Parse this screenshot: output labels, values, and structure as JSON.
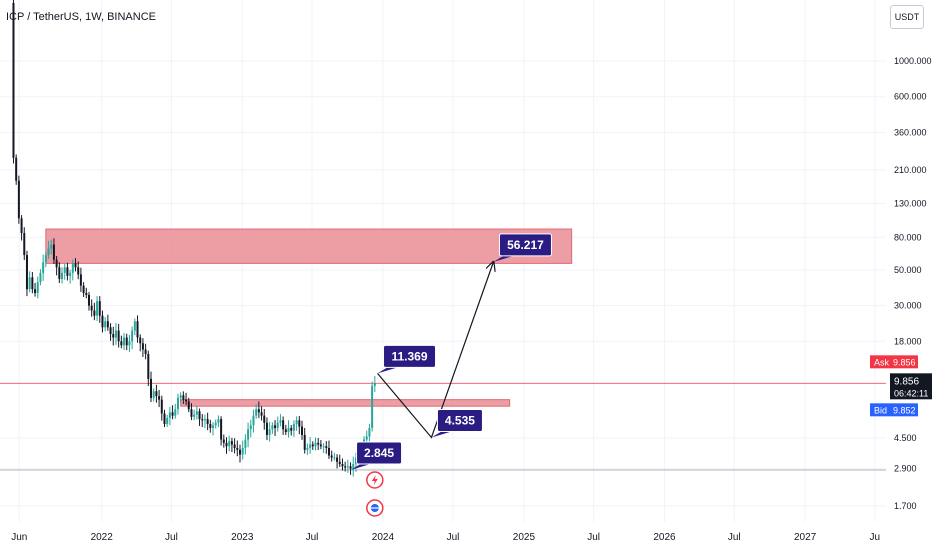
{
  "header": {
    "symbol_title": "ICP / TetherUS, 1W, BINANCE",
    "currency_button": "USDT"
  },
  "quote": {
    "ask_label": "Ask",
    "ask_value": "9.856",
    "last_value": "9.856",
    "countdown": "06:42:11",
    "bid_label": "Bid",
    "bid_value": "9.852"
  },
  "colors": {
    "up": "#26a69a",
    "down": "#131722",
    "zone_fill": "#e8868e",
    "zone_border": "#e06a74",
    "ask": "#f23645",
    "bid": "#2962ff",
    "last_price_bg": "#131722",
    "label_bg": "#2a1c83",
    "arrow": "#131722"
  },
  "chart_data": {
    "type": "candlestick",
    "title": "ICP / TetherUS, 1W, BINANCE",
    "y_scale": "log",
    "ylim": [
      1.35,
      2400
    ],
    "y_ticks": [
      {
        "v": 1000,
        "label": "1000.000"
      },
      {
        "v": 600,
        "label": "600.000"
      },
      {
        "v": 360,
        "label": "360.000"
      },
      {
        "v": 210,
        "label": "210.000"
      },
      {
        "v": 130,
        "label": "130.000"
      },
      {
        "v": 80,
        "label": "80.000"
      },
      {
        "v": 50,
        "label": "50.000"
      },
      {
        "v": 30,
        "label": "30.000"
      },
      {
        "v": 18,
        "label": "18.000"
      },
      {
        "v": 4.5,
        "label": "4.500"
      },
      {
        "v": 2.9,
        "label": "2.900"
      },
      {
        "v": 1.7,
        "label": "1.700"
      }
    ],
    "x_range": [
      "2021-04-12",
      "2027-07-30"
    ],
    "x_ticks": [
      {
        "date": "2021-06-01",
        "label": "Jun"
      },
      {
        "date": "2022-01-01",
        "label": "2022"
      },
      {
        "date": "2022-07-01",
        "label": "Jul"
      },
      {
        "date": "2023-01-01",
        "label": "2023"
      },
      {
        "date": "2023-07-01",
        "label": "Jul"
      },
      {
        "date": "2024-01-01",
        "label": "2024"
      },
      {
        "date": "2024-07-01",
        "label": "Jul"
      },
      {
        "date": "2025-01-01",
        "label": "2025"
      },
      {
        "date": "2025-07-01",
        "label": "Jul"
      },
      {
        "date": "2026-01-01",
        "label": "2026"
      },
      {
        "date": "2026-07-01",
        "label": "Jul"
      },
      {
        "date": "2027-01-01",
        "label": "2027"
      },
      {
        "date": "2027-07-01",
        "label": "Ju"
      }
    ],
    "price_path": [
      [
        "2021-05-10",
        2300
      ],
      [
        "2021-05-17",
        250
      ],
      [
        "2021-05-24",
        180
      ],
      [
        "2021-05-31",
        105
      ],
      [
        "2021-06-07",
        85
      ],
      [
        "2021-06-14",
        62
      ],
      [
        "2021-06-21",
        38
      ],
      [
        "2021-06-28",
        45
      ],
      [
        "2021-07-05",
        38
      ],
      [
        "2021-07-12",
        36
      ],
      [
        "2021-07-19",
        42
      ],
      [
        "2021-07-26",
        48
      ],
      [
        "2021-08-02",
        56
      ],
      [
        "2021-08-09",
        62
      ],
      [
        "2021-08-16",
        68
      ],
      [
        "2021-08-23",
        72
      ],
      [
        "2021-08-30",
        58
      ],
      [
        "2021-09-06",
        52
      ],
      [
        "2021-09-13",
        44
      ],
      [
        "2021-09-20",
        48
      ],
      [
        "2021-09-27",
        52
      ],
      [
        "2021-10-04",
        46
      ],
      [
        "2021-10-11",
        48
      ],
      [
        "2021-10-18",
        55
      ],
      [
        "2021-10-25",
        52
      ],
      [
        "2021-11-01",
        47
      ],
      [
        "2021-11-08",
        40
      ],
      [
        "2021-11-15",
        36
      ],
      [
        "2021-11-22",
        35
      ],
      [
        "2021-11-29",
        30
      ],
      [
        "2021-12-06",
        28
      ],
      [
        "2021-12-13",
        26
      ],
      [
        "2021-12-20",
        32
      ],
      [
        "2021-12-27",
        26
      ],
      [
        "2022-01-03",
        22
      ],
      [
        "2022-01-10",
        24
      ],
      [
        "2022-01-17",
        22
      ],
      [
        "2022-01-24",
        20
      ],
      [
        "2022-01-31",
        19
      ],
      [
        "2022-02-07",
        21
      ],
      [
        "2022-02-14",
        18
      ],
      [
        "2022-02-21",
        17
      ],
      [
        "2022-02-28",
        19
      ],
      [
        "2022-03-07",
        17
      ],
      [
        "2022-03-14",
        18
      ],
      [
        "2022-03-21",
        21
      ],
      [
        "2022-03-28",
        24
      ],
      [
        "2022-04-04",
        19
      ],
      [
        "2022-04-11",
        17.5
      ],
      [
        "2022-04-18",
        16
      ],
      [
        "2022-04-25",
        15
      ],
      [
        "2022-05-02",
        10.5
      ],
      [
        "2022-05-09",
        8.0
      ],
      [
        "2022-05-16",
        8.8
      ],
      [
        "2022-05-23",
        8.2
      ],
      [
        "2022-05-30",
        7.8
      ],
      [
        "2022-06-06",
        6.4
      ],
      [
        "2022-06-13",
        5.5
      ],
      [
        "2022-06-20",
        6.0
      ],
      [
        "2022-06-27",
        6.5
      ],
      [
        "2022-07-04",
        6.2
      ],
      [
        "2022-07-11",
        6.8
      ],
      [
        "2022-07-18",
        8.0
      ],
      [
        "2022-07-25",
        8.3
      ],
      [
        "2022-08-01",
        7.8
      ],
      [
        "2022-08-08",
        7.6
      ],
      [
        "2022-08-15",
        6.8
      ],
      [
        "2022-08-22",
        6.1
      ],
      [
        "2022-08-29",
        6.3
      ],
      [
        "2022-09-05",
        6.6
      ],
      [
        "2022-09-12",
        5.9
      ],
      [
        "2022-09-19",
        5.8
      ],
      [
        "2022-09-26",
        5.9
      ],
      [
        "2022-10-03",
        5.5
      ],
      [
        "2022-10-10",
        5.2
      ],
      [
        "2022-10-17",
        5.4
      ],
      [
        "2022-10-24",
        5.6
      ],
      [
        "2022-10-31",
        5.9
      ],
      [
        "2022-11-07",
        4.4
      ],
      [
        "2022-11-14",
        4.2
      ],
      [
        "2022-11-21",
        4.0
      ],
      [
        "2022-11-28",
        4.3
      ],
      [
        "2022-12-05",
        4.1
      ],
      [
        "2022-12-12",
        3.9
      ],
      [
        "2022-12-19",
        3.8
      ],
      [
        "2022-12-26",
        3.55
      ],
      [
        "2023-01-02",
        3.9
      ],
      [
        "2023-01-09",
        4.4
      ],
      [
        "2023-01-16",
        5.1
      ],
      [
        "2023-01-23",
        5.4
      ],
      [
        "2023-01-30",
        6.2
      ],
      [
        "2023-02-06",
        6.8
      ],
      [
        "2023-02-13",
        6.5
      ],
      [
        "2023-02-20",
        6.2
      ],
      [
        "2023-02-27",
        5.6
      ],
      [
        "2023-03-06",
        4.7
      ],
      [
        "2023-03-13",
        5.1
      ],
      [
        "2023-03-20",
        5.4
      ],
      [
        "2023-03-27",
        5.2
      ],
      [
        "2023-04-03",
        5.6
      ],
      [
        "2023-04-10",
        5.8
      ],
      [
        "2023-04-17",
        5.1
      ],
      [
        "2023-04-24",
        4.9
      ],
      [
        "2023-05-01",
        5.2
      ],
      [
        "2023-05-08",
        5.0
      ],
      [
        "2023-05-15",
        5.5
      ],
      [
        "2023-05-22",
        5.8
      ],
      [
        "2023-05-29",
        5.3
      ],
      [
        "2023-06-05",
        4.7
      ],
      [
        "2023-06-12",
        3.8
      ],
      [
        "2023-06-19",
        3.9
      ],
      [
        "2023-06-26",
        4.1
      ],
      [
        "2023-07-03",
        4.0
      ],
      [
        "2023-07-10",
        4.2
      ],
      [
        "2023-07-17",
        4.1
      ],
      [
        "2023-07-24",
        4.0
      ],
      [
        "2023-07-31",
        4.0
      ],
      [
        "2023-08-07",
        3.9
      ],
      [
        "2023-08-14",
        3.5
      ],
      [
        "2023-08-21",
        3.4
      ],
      [
        "2023-08-28",
        3.4
      ],
      [
        "2023-09-04",
        3.2
      ],
      [
        "2023-09-11",
        3.1
      ],
      [
        "2023-09-18",
        3.0
      ],
      [
        "2023-09-25",
        2.95
      ],
      [
        "2023-10-02",
        3.0
      ],
      [
        "2023-10-09",
        2.9
      ],
      [
        "2023-10-16",
        3.1
      ],
      [
        "2023-10-23",
        3.4
      ],
      [
        "2023-10-30",
        3.6
      ],
      [
        "2023-11-06",
        3.9
      ],
      [
        "2023-11-13",
        4.4
      ],
      [
        "2023-11-20",
        4.6
      ],
      [
        "2023-11-27",
        5.2
      ],
      [
        "2023-12-04",
        9.5
      ],
      [
        "2023-12-11",
        9.856
      ]
    ],
    "zones": [
      {
        "name": "supply-zone",
        "from": "2021-08-09",
        "to": "2025-05-05",
        "low": 55,
        "high": 90
      },
      {
        "name": "resistance-zone",
        "from": "2022-07-25",
        "to": "2024-11-25",
        "low": 7.1,
        "high": 7.8
      }
    ],
    "projection": [
      [
        "2023-12-18",
        11.369
      ],
      [
        "2024-05-06",
        4.535
      ],
      [
        "2024-10-14",
        56.217
      ]
    ],
    "annotations": [
      {
        "text": "2.845",
        "date": "2023-10-09",
        "value": 2.845
      },
      {
        "text": "11.369",
        "date": "2023-12-18",
        "value": 11.369
      },
      {
        "text": "4.535",
        "date": "2024-05-06",
        "value": 4.535
      },
      {
        "text": "56.217",
        "date": "2024-10-14",
        "value": 56.217
      }
    ],
    "horizontal_lines": [
      {
        "name": "last-price-line",
        "value": 9.856
      },
      {
        "name": "low-line",
        "value": 2.845
      }
    ],
    "grid": true,
    "event_markers": [
      {
        "name": "lightning-icon",
        "date": "2023-12-11"
      },
      {
        "name": "flag-icon",
        "date": "2023-12-11"
      }
    ]
  }
}
